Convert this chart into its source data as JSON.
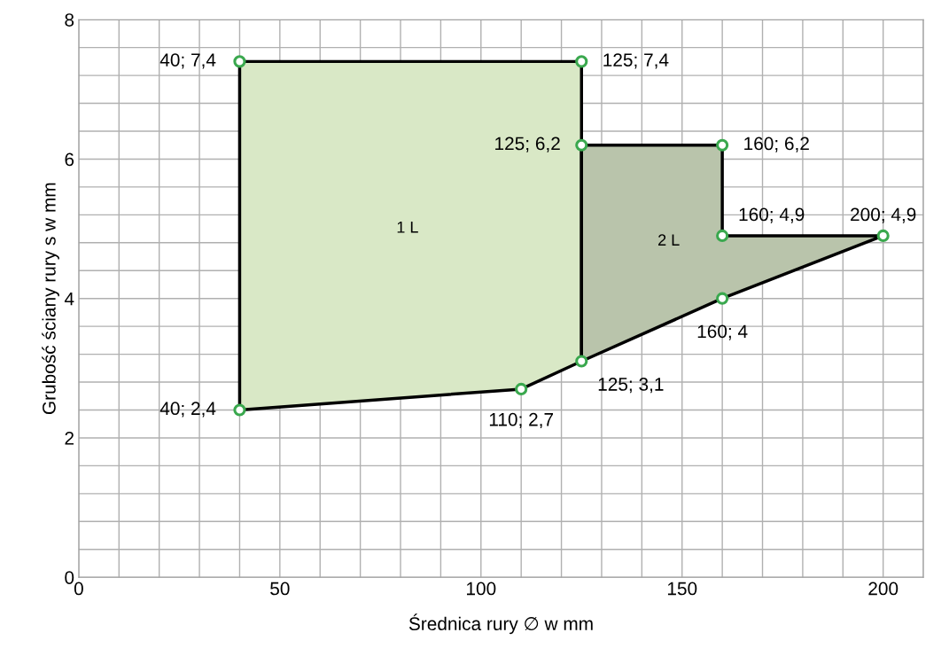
{
  "chart_data": {
    "type": "area",
    "xlabel": "Średnica rury ∅ w mm",
    "ylabel": "Grubość ściany rury s w mm",
    "xlim": [
      0,
      210
    ],
    "ylim": [
      0,
      8
    ],
    "xticks": [
      0,
      {
        "value": 10,
        "label": null
      },
      {
        "value": 20,
        "label": null
      },
      {
        "value": 30,
        "label": null
      },
      {
        "value": 40,
        "label": null
      },
      50,
      {
        "value": 60,
        "label": null
      },
      {
        "value": 70,
        "label": null
      },
      {
        "value": 80,
        "label": null
      },
      {
        "value": 90,
        "label": null
      },
      100,
      {
        "value": 110,
        "label": null
      },
      {
        "value": 120,
        "label": null
      },
      {
        "value": 130,
        "label": null
      },
      {
        "value": 140,
        "label": null
      },
      150,
      {
        "value": 160,
        "label": null
      },
      {
        "value": 170,
        "label": null
      },
      {
        "value": 180,
        "label": null
      },
      {
        "value": 190,
        "label": null
      },
      200,
      {
        "value": 210,
        "label": null
      }
    ],
    "yticks": [
      0,
      {
        "value": 0.4,
        "label": null
      },
      {
        "value": 0.8,
        "label": null
      },
      {
        "value": 1.2,
        "label": null
      },
      {
        "value": 1.6,
        "label": null
      },
      2,
      {
        "value": 2.4,
        "label": null
      },
      {
        "value": 2.8,
        "label": null
      },
      {
        "value": 3.2,
        "label": null
      },
      {
        "value": 3.6,
        "label": null
      },
      4,
      {
        "value": 4.4,
        "label": null
      },
      {
        "value": 4.8,
        "label": null
      },
      {
        "value": 5.2,
        "label": null
      },
      {
        "value": 5.6,
        "label": null
      },
      6,
      {
        "value": 6.4,
        "label": null
      },
      {
        "value": 6.8,
        "label": null
      },
      {
        "value": 7.2,
        "label": null
      },
      {
        "value": 7.6,
        "label": null
      },
      8
    ],
    "grid": true,
    "series": [
      {
        "name": "1 L",
        "color": "#d9e8c6",
        "x": [
          40,
          40,
          125,
          125,
          110
        ],
        "values": [
          2.4,
          7.4,
          7.4,
          3.1,
          2.7
        ]
      },
      {
        "name": "2 L",
        "color": "#b9c4ab",
        "x": [
          125,
          125,
          160,
          160,
          200,
          160
        ],
        "values": [
          3.1,
          6.2,
          6.2,
          4.9,
          4.9,
          4.0
        ]
      },
      {
        "type": "scatter",
        "color": "#3aa84e",
        "marker": "circle",
        "x": [
          40,
          125,
          125,
          160,
          160,
          200,
          160,
          125,
          110,
          40
        ],
        "values": [
          7.4,
          7.4,
          6.2,
          6.2,
          4.9,
          4.9,
          4.0,
          3.1,
          2.7,
          2.4
        ],
        "value_labels": [
          "40; 7,4",
          "125; 7,4",
          "125; 6,2",
          "160; 6,2",
          "160; 4,9",
          "200; 4,9",
          "160; 4",
          "125; 3,1",
          "110; 2,7",
          "40; 2,4"
        ]
      }
    ]
  }
}
